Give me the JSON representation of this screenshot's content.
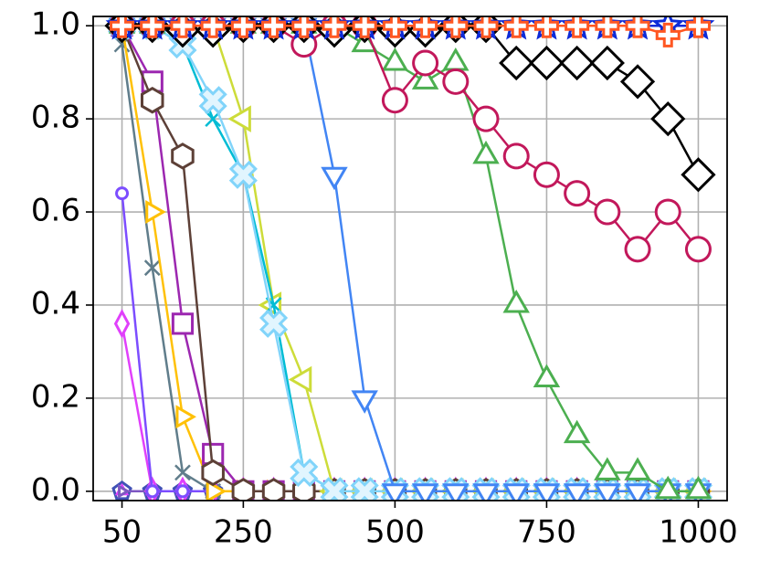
{
  "chart_data": {
    "type": "line",
    "x": [
      50,
      100,
      150,
      200,
      250,
      300,
      350,
      400,
      450,
      500,
      550,
      600,
      650,
      700,
      750,
      800,
      850,
      900,
      950,
      1000
    ],
    "xlim": [
      2.5,
      1047.5
    ],
    "xticks": [
      50,
      250,
      500,
      750,
      1000
    ],
    "ylim": [
      -0.02,
      1.02
    ],
    "yticks": [
      {
        "value": 0,
        "label": "0.0"
      },
      0.2,
      0.4,
      0.6,
      0.8,
      {
        "value": 1,
        "label": "1.0"
      }
    ],
    "grid": true,
    "series": [
      {
        "color": "#3f51b5",
        "fill": "#ffffff",
        "marker": "p",
        "values": [
          0,
          0,
          0,
          0,
          0,
          0,
          0,
          0,
          0,
          0,
          0,
          0,
          0,
          0,
          0,
          0,
          0,
          0,
          0,
          0
        ]
      },
      {
        "color": "#e040fb",
        "fill": "#ffffff",
        "marker": "2",
        "values": [
          0,
          0,
          0,
          0,
          0,
          0,
          0,
          0,
          0,
          0,
          0,
          0,
          0,
          0,
          0,
          0,
          0,
          0,
          0,
          0
        ]
      },
      {
        "color": "#7e57c2",
        "fill": "#ffffff",
        "marker": "4",
        "values": [
          0,
          0,
          0,
          0,
          0,
          0,
          0,
          0,
          0,
          0,
          0,
          0,
          0,
          0,
          0,
          0,
          0,
          0,
          0,
          0
        ]
      },
      {
        "color": "#e040fb",
        "fill": "#ffffff",
        "marker": "d",
        "values": [
          0.36,
          0,
          0,
          0,
          0,
          0,
          0,
          0,
          0,
          0,
          0,
          0,
          0,
          0,
          0,
          0,
          0,
          0,
          0,
          0
        ]
      },
      {
        "color": "#7c4dff",
        "fill": "#ffffff",
        "marker": ".",
        "values": [
          0.64,
          0,
          0,
          0,
          0,
          0,
          0,
          0,
          0,
          0,
          0,
          0,
          0,
          0,
          0,
          0,
          0,
          0,
          0,
          0
        ]
      },
      {
        "color": "#607d8b",
        "fill": "#ffffff",
        "marker": "x",
        "values": [
          0.96,
          0.48,
          0.04,
          0,
          0,
          0,
          0,
          0,
          0,
          0,
          0,
          0,
          0,
          0,
          0,
          0,
          0,
          0,
          0,
          0
        ]
      },
      {
        "color": "#ffc107",
        "fill": "#ffffff",
        "marker": ">",
        "values": [
          1,
          0.6,
          0.16,
          0,
          0,
          0,
          0,
          0,
          0,
          0,
          0,
          0,
          0,
          0,
          0,
          0,
          0,
          0,
          0,
          0
        ]
      },
      {
        "color": "#9c27b0",
        "fill": "#ffffff",
        "marker": "s",
        "values": [
          1,
          0.88,
          0.36,
          0.08,
          0,
          0,
          0,
          0,
          0,
          0,
          0,
          0,
          0,
          0,
          0,
          0,
          0,
          0,
          0,
          0
        ]
      },
      {
        "color": "#5d4037",
        "fill": "#ffffff",
        "marker": "h",
        "values": [
          1,
          0.84,
          0.72,
          0.04,
          0,
          0,
          0,
          0,
          0,
          0,
          0,
          0,
          0,
          0,
          0,
          0,
          0,
          0,
          0,
          0
        ]
      },
      {
        "color": "#cddc39",
        "fill": "#ffffff",
        "marker": "<",
        "values": [
          1,
          1,
          1,
          1,
          0.8,
          0.4,
          0.24,
          0,
          0,
          0,
          0,
          0,
          0,
          0,
          0,
          0,
          0,
          0,
          0,
          0
        ]
      },
      {
        "color": "#00bcd4",
        "fill": "#ffffff",
        "marker": "x",
        "values": [
          1,
          1,
          0.96,
          0.8,
          0.68,
          0.4,
          0.04,
          0,
          0,
          0,
          0,
          0,
          0,
          0,
          0,
          0,
          0,
          0,
          0,
          0
        ]
      },
      {
        "color": "#81d4fa",
        "fill": "#e1f5fe",
        "marker": "X",
        "values": [
          1,
          1,
          0.96,
          0.84,
          0.68,
          0.36,
          0.04,
          0,
          0,
          0,
          0,
          0,
          0,
          0,
          0,
          0,
          0,
          0,
          0,
          0
        ]
      },
      {
        "color": "#4285f4",
        "fill": "#ffffff",
        "marker": "v",
        "values": [
          1,
          1,
          1,
          1,
          1,
          1,
          1,
          0.68,
          0.2,
          0,
          0,
          0,
          0,
          0,
          0,
          0,
          0,
          0,
          0,
          0
        ]
      },
      {
        "color": "#4caf50",
        "fill": "#ffffff",
        "marker": "^",
        "values": [
          1,
          1,
          1,
          1,
          1,
          1,
          1,
          1,
          0.96,
          0.92,
          0.88,
          0.92,
          0.72,
          0.4,
          0.24,
          0.12,
          0.04,
          0.04,
          0,
          0
        ]
      },
      {
        "color": "#c2185b",
        "fill": "#ffffff",
        "marker": "o",
        "values": [
          1,
          1,
          1,
          1,
          1,
          1,
          0.96,
          1,
          1,
          0.84,
          0.92,
          0.88,
          0.8,
          0.72,
          0.68,
          0.64,
          0.6,
          0.52,
          0.6,
          0.52
        ]
      },
      {
        "color": "#000000",
        "fill": "#ffffff",
        "marker": "D",
        "values": [
          1,
          1,
          0.99,
          0.99,
          1,
          1,
          1,
          0.99,
          1,
          0.99,
          0.99,
          1,
          1,
          0.92,
          0.92,
          0.92,
          0.92,
          0.88,
          0.8,
          0.68
        ]
      },
      {
        "color": "#0d2bd8",
        "fill": "#ffffff",
        "marker": "*",
        "values": [
          1,
          1,
          1,
          1,
          1,
          1,
          1,
          1,
          1,
          1,
          1,
          1,
          1,
          1,
          1,
          1,
          1,
          1,
          1,
          1
        ]
      },
      {
        "color": "#ff5722",
        "fill": "#ffffff",
        "marker": "P",
        "values": [
          1,
          1,
          1,
          1,
          1,
          1,
          1,
          1,
          1,
          1,
          1,
          1,
          1,
          1,
          1,
          1,
          1,
          1,
          0.98,
          1
        ]
      }
    ]
  }
}
